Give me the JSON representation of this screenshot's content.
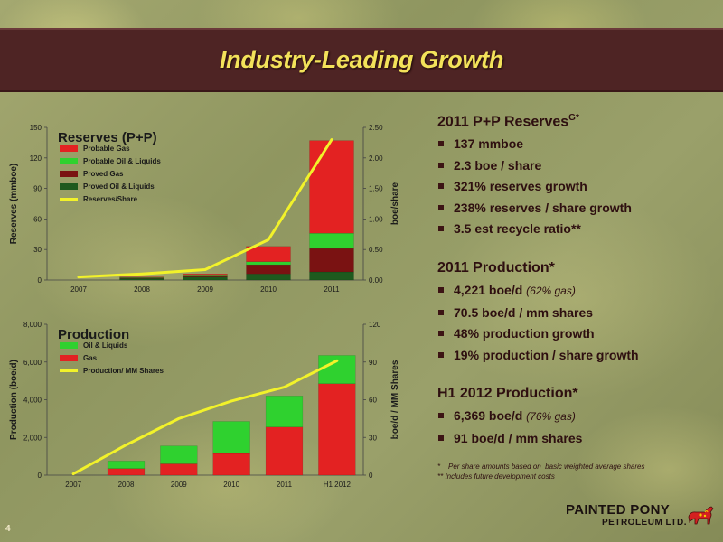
{
  "slide": {
    "title": "Industry-Leading Growth",
    "slide_number": "4"
  },
  "text_panel": {
    "reserves_heading": "2011 P+P Reserves",
    "reserves_heading_sup": "G*",
    "reserves_bullets": [
      "137 mmboe",
      "2.3 boe / share",
      "321% reserves growth",
      "238% reserves / share growth",
      "3.5 est recycle ratio**"
    ],
    "production_heading": "2011 Production*",
    "production_bullets": [
      {
        "text": "4,221 boe/d",
        "note": "(62% gas)"
      },
      {
        "text": "70.5 boe/d / mm shares",
        "note": ""
      },
      {
        "text": "48% production growth",
        "note": ""
      },
      {
        "text": "19% production / share growth",
        "note": ""
      }
    ],
    "h1_heading": "H1 2012 Production*",
    "h1_bullets": [
      {
        "text": "6,369 boe/d",
        "note": "(76% gas)"
      },
      {
        "text": "91 boe/d / mm shares",
        "note": ""
      }
    ],
    "footnote1": "*    Per share amounts based on  basic weighted average shares",
    "footnote2": "** Includes future development costs"
  },
  "logo": {
    "name": "PAINTED PONY",
    "subname": "PETROLEUM LTD."
  },
  "colors": {
    "title_bar": "#4e2424",
    "title_text": "#f3e25a",
    "probable_gas": "#e32222",
    "probable_oil": "#2fd12f",
    "proved_gas": "#7a1212",
    "proved_oil": "#1e5a1e",
    "gas": "#e32222",
    "oil": "#2fd12f",
    "line": "#f2f22a"
  },
  "chart_data": [
    {
      "type": "bar",
      "stacked": true,
      "title": "Reserves (P+P)",
      "ylabel": "Reserves (mmboe)",
      "y2label": "boe/share",
      "categories": [
        "2007",
        "2008",
        "2009",
        "2010",
        "2011"
      ],
      "ylim": [
        0,
        150
      ],
      "yticks": [
        "0",
        "30",
        "60",
        "90",
        "120",
        "150"
      ],
      "y2lim": [
        0,
        2.5
      ],
      "y2ticks": [
        "0.00",
        "0.50",
        "1.00",
        "1.50",
        "2.00",
        "2.50"
      ],
      "series": [
        {
          "name": "Probable Gas",
          "color": "#e32222",
          "values": [
            0,
            0.5,
            1,
            15,
            91
          ]
        },
        {
          "name": "Probable Oil & Liquids",
          "color": "#2fd12f",
          "values": [
            0,
            0.5,
            1,
            3,
            15
          ]
        },
        {
          "name": "Proved Gas",
          "color": "#7a1212",
          "values": [
            0,
            0.5,
            1,
            9,
            23
          ]
        },
        {
          "name": "Proved Oil & Liquids",
          "color": "#1e5a1e",
          "values": [
            0,
            1.5,
            3,
            6,
            8
          ]
        }
      ],
      "line_series": {
        "name": "Reserves/Share",
        "color": "#f2f22a",
        "values": [
          0.05,
          0.1,
          0.17,
          0.66,
          2.3
        ]
      },
      "legend": "top-left"
    },
    {
      "type": "bar",
      "stacked": true,
      "title": "Production",
      "ylabel": "Production (boe/d)",
      "y2label": "boe/d / MM Shares",
      "categories": [
        "2007",
        "2008",
        "2009",
        "2010",
        "2011",
        "H1  2012"
      ],
      "ylim": [
        0,
        8000
      ],
      "yticks": [
        "0",
        "2,000",
        "4,000",
        "6,000",
        "8,000"
      ],
      "y2lim": [
        0,
        120
      ],
      "y2ticks": [
        "0",
        "30",
        "60",
        "90",
        "120"
      ],
      "series": [
        {
          "name": "Oil & Liquids",
          "color": "#2fd12f",
          "values": [
            0,
            400,
            950,
            1700,
            1650,
            1500
          ]
        },
        {
          "name": "Gas",
          "color": "#e32222",
          "values": [
            0,
            350,
            600,
            1150,
            2550,
            4850
          ]
        }
      ],
      "line_series": {
        "name": "Production/ MM Shares",
        "color": "#f2f22a",
        "values": [
          1,
          24,
          45,
          59,
          70,
          91
        ]
      },
      "legend": "top-left"
    }
  ]
}
